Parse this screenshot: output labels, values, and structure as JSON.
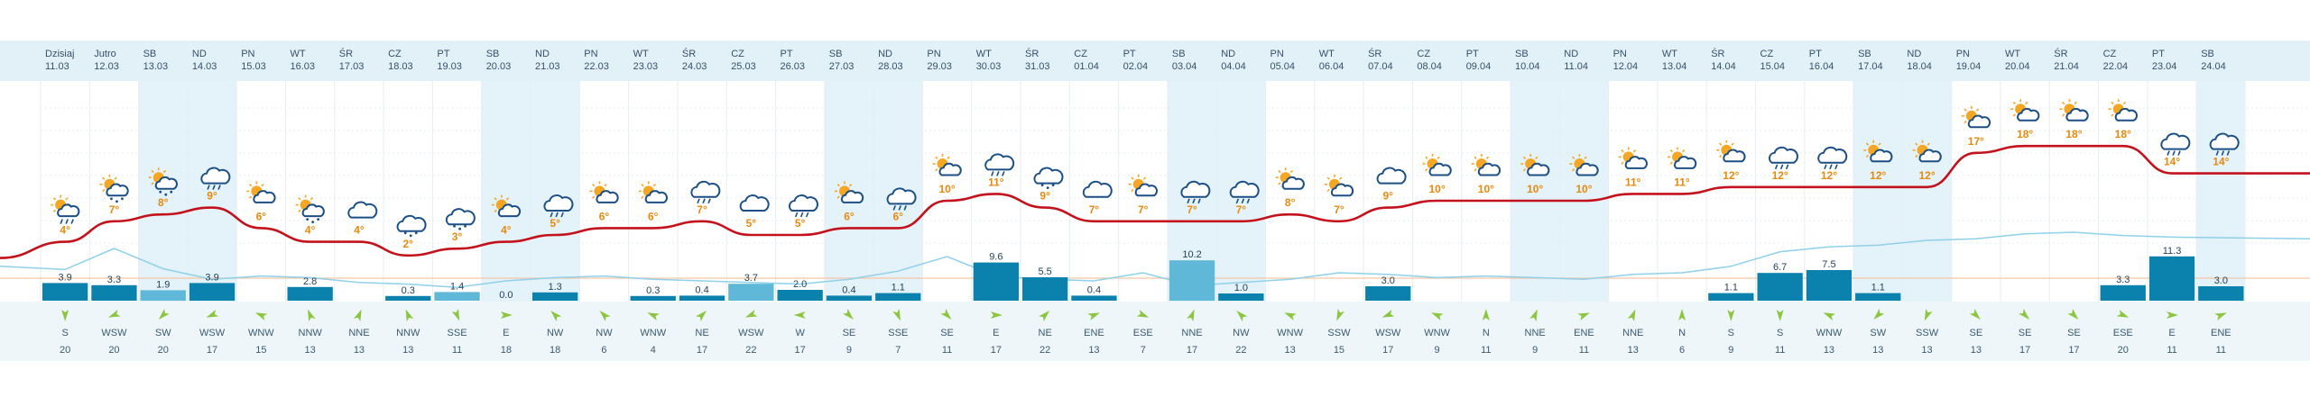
{
  "colors": {
    "header_bg": "#e2f1f8",
    "weekend_bg": "#e4f2f9",
    "temp_line": "#c4121c",
    "temp_label": "#e8890c",
    "precip_bar": "#0b82ae",
    "precip_bar_light": "#5fb8d8",
    "humidity_line": "#8fd0ea",
    "grid_line": "#e6eef3",
    "wind_arrow": "#8cc63f",
    "sun": "#f5a623",
    "cloud": "#1b4f86"
  },
  "days": [
    {
      "name": "Dzisiaj",
      "date": "11.03",
      "weekend": false,
      "icon": "sun-cloud-rain-icon",
      "temp": "4°",
      "temp_val": 4,
      "precip": "3.9",
      "precip_val": 3.9,
      "wind_dir": "S",
      "wind_speed": "20",
      "wind_angle": 180
    },
    {
      "name": "Jutro",
      "date": "12.03",
      "weekend": false,
      "icon": "sun-cloud-snow-icon",
      "temp": "7°",
      "temp_val": 7,
      "precip": "3.3",
      "precip_val": 3.3,
      "wind_dir": "WSW",
      "wind_speed": "20",
      "wind_angle": 248
    },
    {
      "name": "SB",
      "date": "13.03",
      "weekend": true,
      "icon": "sun-cloud-snow-icon",
      "temp": "8°",
      "temp_val": 8,
      "precip": "1.9",
      "precip_val": 1.9,
      "wind_dir": "SW",
      "wind_speed": "20",
      "wind_angle": 225
    },
    {
      "name": "ND",
      "date": "14.03",
      "weekend": true,
      "icon": "cloud-rain-icon",
      "temp": "9°",
      "temp_val": 9,
      "precip": "3.9",
      "precip_val": 3.9,
      "wind_dir": "WSW",
      "wind_speed": "17",
      "wind_angle": 248
    },
    {
      "name": "PN",
      "date": "15.03",
      "weekend": false,
      "icon": "sun-cloud-icon",
      "temp": "6°",
      "temp_val": 6,
      "precip": "",
      "precip_val": 0,
      "wind_dir": "WNW",
      "wind_speed": "15",
      "wind_angle": 293
    },
    {
      "name": "WT",
      "date": "16.03",
      "weekend": false,
      "icon": "sun-cloud-snow-icon",
      "temp": "4°",
      "temp_val": 4,
      "precip": "2.8",
      "precip_val": 2.8,
      "wind_dir": "NNW",
      "wind_speed": "13",
      "wind_angle": 338
    },
    {
      "name": "ŚR",
      "date": "17.03",
      "weekend": false,
      "icon": "cloud-icon",
      "temp": "4°",
      "temp_val": 4,
      "precip": "",
      "precip_val": 0,
      "wind_dir": "NNE",
      "wind_speed": "13",
      "wind_angle": 23
    },
    {
      "name": "CZ",
      "date": "18.03",
      "weekend": false,
      "icon": "cloud-snow-icon",
      "temp": "2°",
      "temp_val": 2,
      "precip": "0.3",
      "precip_val": 0.3,
      "wind_dir": "NNW",
      "wind_speed": "13",
      "wind_angle": 338
    },
    {
      "name": "PT",
      "date": "19.03",
      "weekend": false,
      "icon": "cloud-snow-icon",
      "temp": "3°",
      "temp_val": 3,
      "precip": "1.4",
      "precip_val": 1.4,
      "wind_dir": "SSE",
      "wind_speed": "11",
      "wind_angle": 158
    },
    {
      "name": "SB",
      "date": "20.03",
      "weekend": true,
      "icon": "sun-cloud-icon",
      "temp": "4°",
      "temp_val": 4,
      "precip": "0.0",
      "precip_val": 0,
      "wind_dir": "E",
      "wind_speed": "18",
      "wind_angle": 90
    },
    {
      "name": "ND",
      "date": "21.03",
      "weekend": true,
      "icon": "cloud-rain-icon",
      "temp": "5°",
      "temp_val": 5,
      "precip": "1.3",
      "precip_val": 1.3,
      "wind_dir": "NW",
      "wind_speed": "18",
      "wind_angle": 315
    },
    {
      "name": "PN",
      "date": "22.03",
      "weekend": false,
      "icon": "sun-cloud-icon",
      "temp": "6°",
      "temp_val": 6,
      "precip": "",
      "precip_val": 0,
      "wind_dir": "NW",
      "wind_speed": "6",
      "wind_angle": 315
    },
    {
      "name": "WT",
      "date": "23.03",
      "weekend": false,
      "icon": "sun-cloud-icon",
      "temp": "6°",
      "temp_val": 6,
      "precip": "0.3",
      "precip_val": 0.3,
      "wind_dir": "WNW",
      "wind_speed": "4",
      "wind_angle": 293
    },
    {
      "name": "ŚR",
      "date": "24.03",
      "weekend": false,
      "icon": "cloud-rain-icon",
      "temp": "7°",
      "temp_val": 7,
      "precip": "0.4",
      "precip_val": 0.4,
      "wind_dir": "NE",
      "wind_speed": "17",
      "wind_angle": 45
    },
    {
      "name": "CZ",
      "date": "25.03",
      "weekend": false,
      "icon": "cloud-icon",
      "temp": "5°",
      "temp_val": 5,
      "precip": "3.7",
      "precip_val": 3.7,
      "wind_dir": "WSW",
      "wind_speed": "22",
      "wind_angle": 248
    },
    {
      "name": "PT",
      "date": "26.03",
      "weekend": false,
      "icon": "cloud-rain-icon",
      "temp": "5°",
      "temp_val": 5,
      "precip": "2.0",
      "precip_val": 2.0,
      "wind_dir": "W",
      "wind_speed": "17",
      "wind_angle": 270
    },
    {
      "name": "SB",
      "date": "27.03",
      "weekend": true,
      "icon": "sun-cloud-icon",
      "temp": "6°",
      "temp_val": 6,
      "precip": "0.4",
      "precip_val": 0.4,
      "wind_dir": "SE",
      "wind_speed": "9",
      "wind_angle": 135
    },
    {
      "name": "ND",
      "date": "28.03",
      "weekend": true,
      "icon": "cloud-rain-icon",
      "temp": "6°",
      "temp_val": 6,
      "precip": "1.1",
      "precip_val": 1.1,
      "wind_dir": "SSE",
      "wind_speed": "7",
      "wind_angle": 158
    },
    {
      "name": "PN",
      "date": "29.03",
      "weekend": false,
      "icon": "sun-cloud-icon",
      "temp": "10°",
      "temp_val": 10,
      "precip": "",
      "precip_val": 0,
      "wind_dir": "SE",
      "wind_speed": "11",
      "wind_angle": 135
    },
    {
      "name": "WT",
      "date": "30.03",
      "weekend": false,
      "icon": "cloud-rain-icon",
      "temp": "11°",
      "temp_val": 11,
      "precip": "9.6",
      "precip_val": 9.6,
      "wind_dir": "E",
      "wind_speed": "17",
      "wind_angle": 90
    },
    {
      "name": "ŚR",
      "date": "31.03",
      "weekend": false,
      "icon": "cloud-snow-icon",
      "temp": "9°",
      "temp_val": 9,
      "precip": "5.5",
      "precip_val": 5.5,
      "wind_dir": "NE",
      "wind_speed": "22",
      "wind_angle": 45
    },
    {
      "name": "CZ",
      "date": "01.04",
      "weekend": false,
      "icon": "cloud-icon",
      "temp": "7°",
      "temp_val": 7,
      "precip": "0.4",
      "precip_val": 0.4,
      "wind_dir": "ENE",
      "wind_speed": "13",
      "wind_angle": 68
    },
    {
      "name": "PT",
      "date": "02.04",
      "weekend": false,
      "icon": "sun-cloud-icon",
      "temp": "7°",
      "temp_val": 7,
      "precip": "",
      "precip_val": 0,
      "wind_dir": "ESE",
      "wind_speed": "7",
      "wind_angle": 113
    },
    {
      "name": "SB",
      "date": "03.04",
      "weekend": true,
      "icon": "cloud-rain-icon",
      "temp": "7°",
      "temp_val": 7,
      "precip": "10.2",
      "precip_val": 10.2,
      "wind_dir": "NNE",
      "wind_speed": "17",
      "wind_angle": 23
    },
    {
      "name": "ND",
      "date": "04.04",
      "weekend": true,
      "icon": "cloud-rain-icon",
      "temp": "7°",
      "temp_val": 7,
      "precip": "1.0",
      "precip_val": 1.0,
      "wind_dir": "NW",
      "wind_speed": "22",
      "wind_angle": 315
    },
    {
      "name": "PN",
      "date": "05.04",
      "weekend": false,
      "icon": "sun-cloud-icon",
      "temp": "8°",
      "temp_val": 8,
      "precip": "",
      "precip_val": 0,
      "wind_dir": "WNW",
      "wind_speed": "13",
      "wind_angle": 293
    },
    {
      "name": "WT",
      "date": "06.04",
      "weekend": false,
      "icon": "sun-cloud-icon",
      "temp": "7°",
      "temp_val": 7,
      "precip": "",
      "precip_val": 0,
      "wind_dir": "SSW",
      "wind_speed": "15",
      "wind_angle": 203
    },
    {
      "name": "ŚR",
      "date": "07.04",
      "weekend": false,
      "icon": "cloud-icon",
      "temp": "9°",
      "temp_val": 9,
      "precip": "3.0",
      "precip_val": 3.0,
      "wind_dir": "WSW",
      "wind_speed": "17",
      "wind_angle": 248
    },
    {
      "name": "CZ",
      "date": "08.04",
      "weekend": false,
      "icon": "sun-cloud-icon",
      "temp": "10°",
      "temp_val": 10,
      "precip": "",
      "precip_val": 0,
      "wind_dir": "WNW",
      "wind_speed": "9",
      "wind_angle": 293
    },
    {
      "name": "PT",
      "date": "09.04",
      "weekend": false,
      "icon": "sun-cloud-icon",
      "temp": "10°",
      "temp_val": 10,
      "precip": "",
      "precip_val": 0,
      "wind_dir": "N",
      "wind_speed": "11",
      "wind_angle": 0
    },
    {
      "name": "SB",
      "date": "10.04",
      "weekend": true,
      "icon": "sun-cloud-icon",
      "temp": "10°",
      "temp_val": 10,
      "precip": "",
      "precip_val": 0,
      "wind_dir": "NNE",
      "wind_speed": "9",
      "wind_angle": 23
    },
    {
      "name": "ND",
      "date": "11.04",
      "weekend": true,
      "icon": "sun-cloud-icon",
      "temp": "10°",
      "temp_val": 10,
      "precip": "",
      "precip_val": 0,
      "wind_dir": "ENE",
      "wind_speed": "11",
      "wind_angle": 68
    },
    {
      "name": "PN",
      "date": "12.04",
      "weekend": false,
      "icon": "sun-cloud-icon",
      "temp": "11°",
      "temp_val": 11,
      "precip": "",
      "precip_val": 0,
      "wind_dir": "NNE",
      "wind_speed": "13",
      "wind_angle": 23
    },
    {
      "name": "WT",
      "date": "13.04",
      "weekend": false,
      "icon": "sun-cloud-icon",
      "temp": "11°",
      "temp_val": 11,
      "precip": "",
      "precip_val": 0,
      "wind_dir": "N",
      "wind_speed": "6",
      "wind_angle": 0
    },
    {
      "name": "ŚR",
      "date": "14.04",
      "weekend": false,
      "icon": "sun-cloud-icon",
      "temp": "12°",
      "temp_val": 12,
      "precip": "1.1",
      "precip_val": 1.1,
      "wind_dir": "S",
      "wind_speed": "9",
      "wind_angle": 180
    },
    {
      "name": "CZ",
      "date": "15.04",
      "weekend": false,
      "icon": "cloud-rain-icon",
      "temp": "12°",
      "temp_val": 12,
      "precip": "6.7",
      "precip_val": 6.7,
      "wind_dir": "S",
      "wind_speed": "11",
      "wind_angle": 180
    },
    {
      "name": "PT",
      "date": "16.04",
      "weekend": false,
      "icon": "cloud-rain-icon",
      "temp": "12°",
      "temp_val": 12,
      "precip": "7.5",
      "precip_val": 7.5,
      "wind_dir": "WNW",
      "wind_speed": "13",
      "wind_angle": 293
    },
    {
      "name": "SB",
      "date": "17.04",
      "weekend": true,
      "icon": "sun-cloud-icon",
      "temp": "12°",
      "temp_val": 12,
      "precip": "1.1",
      "precip_val": 1.1,
      "wind_dir": "SW",
      "wind_speed": "13",
      "wind_angle": 225
    },
    {
      "name": "ND",
      "date": "18.04",
      "weekend": true,
      "icon": "sun-cloud-icon",
      "temp": "12°",
      "temp_val": 12,
      "precip": "",
      "precip_val": 0,
      "wind_dir": "SSW",
      "wind_speed": "13",
      "wind_angle": 203
    },
    {
      "name": "PN",
      "date": "19.04",
      "weekend": false,
      "icon": "sun-cloud-icon",
      "temp": "17°",
      "temp_val": 17,
      "precip": "",
      "precip_val": 0,
      "wind_dir": "SE",
      "wind_speed": "13",
      "wind_angle": 135
    },
    {
      "name": "WT",
      "date": "20.04",
      "weekend": false,
      "icon": "sun-cloud-icon",
      "temp": "18°",
      "temp_val": 18,
      "precip": "",
      "precip_val": 0,
      "wind_dir": "SE",
      "wind_speed": "17",
      "wind_angle": 135
    },
    {
      "name": "ŚR",
      "date": "21.04",
      "weekend": false,
      "icon": "sun-cloud-icon",
      "temp": "18°",
      "temp_val": 18,
      "precip": "",
      "precip_val": 0,
      "wind_dir": "SE",
      "wind_speed": "17",
      "wind_angle": 135
    },
    {
      "name": "CZ",
      "date": "22.04",
      "weekend": false,
      "icon": "sun-cloud-icon",
      "temp": "18°",
      "temp_val": 18,
      "precip": "3.3",
      "precip_val": 3.3,
      "wind_dir": "ESE",
      "wind_speed": "20",
      "wind_angle": 113
    },
    {
      "name": "PT",
      "date": "23.04",
      "weekend": false,
      "icon": "cloud-rain-icon",
      "temp": "14°",
      "temp_val": 14,
      "precip": "11.3",
      "precip_val": 11.3,
      "wind_dir": "E",
      "wind_speed": "11",
      "wind_angle": 90
    },
    {
      "name": "SB",
      "date": "24.04",
      "weekend": true,
      "icon": "cloud-rain-icon",
      "temp": "14°",
      "temp_val": 14,
      "precip": "3.0",
      "precip_val": 3.0,
      "wind_dir": "ENE",
      "wind_speed": "11",
      "wind_angle": 68
    }
  ],
  "humidity_points": [
    38,
    34,
    60,
    35,
    22,
    26,
    24,
    18,
    16,
    12,
    20,
    24,
    26,
    22,
    20,
    18,
    16,
    22,
    32,
    50,
    26,
    22,
    20,
    30,
    14,
    18,
    22,
    30,
    28,
    24,
    26,
    24,
    22,
    28,
    30,
    38,
    56,
    62,
    64,
    70,
    72,
    78,
    80,
    76,
    74,
    72
  ]
}
